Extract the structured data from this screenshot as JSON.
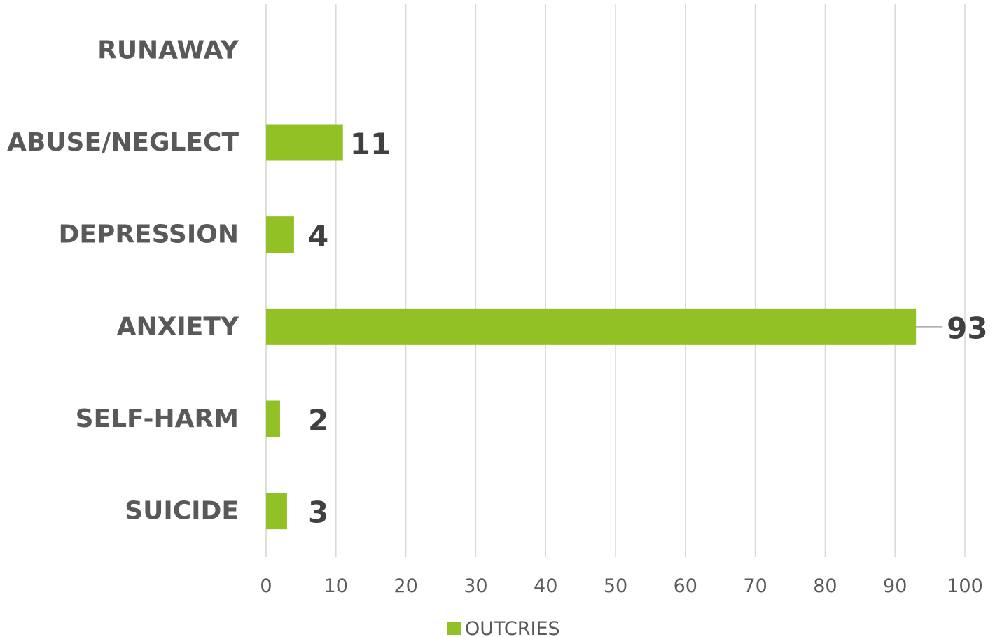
{
  "chart_data": {
    "type": "bar",
    "orientation": "horizontal",
    "categories": [
      "RUNAWAY",
      "ABUSE/NEGLECT",
      "DEPRESSION",
      "ANXIETY",
      "SELF-HARM",
      "SUICIDE"
    ],
    "series": [
      {
        "name": "OUTCRIES",
        "values": [
          null,
          11,
          4,
          93,
          2,
          3
        ],
        "color": "#92c125"
      }
    ],
    "data_labels": [
      "",
      "11",
      "4",
      "93",
      "2",
      "3"
    ],
    "x_ticks": [
      "0",
      "10",
      "20",
      "30",
      "40",
      "50",
      "60",
      "70",
      "80",
      "90",
      "100"
    ],
    "xlim": [
      0,
      100
    ],
    "grid": "vertical",
    "legend": "bottom",
    "title": "",
    "xlabel": "",
    "ylabel": ""
  }
}
